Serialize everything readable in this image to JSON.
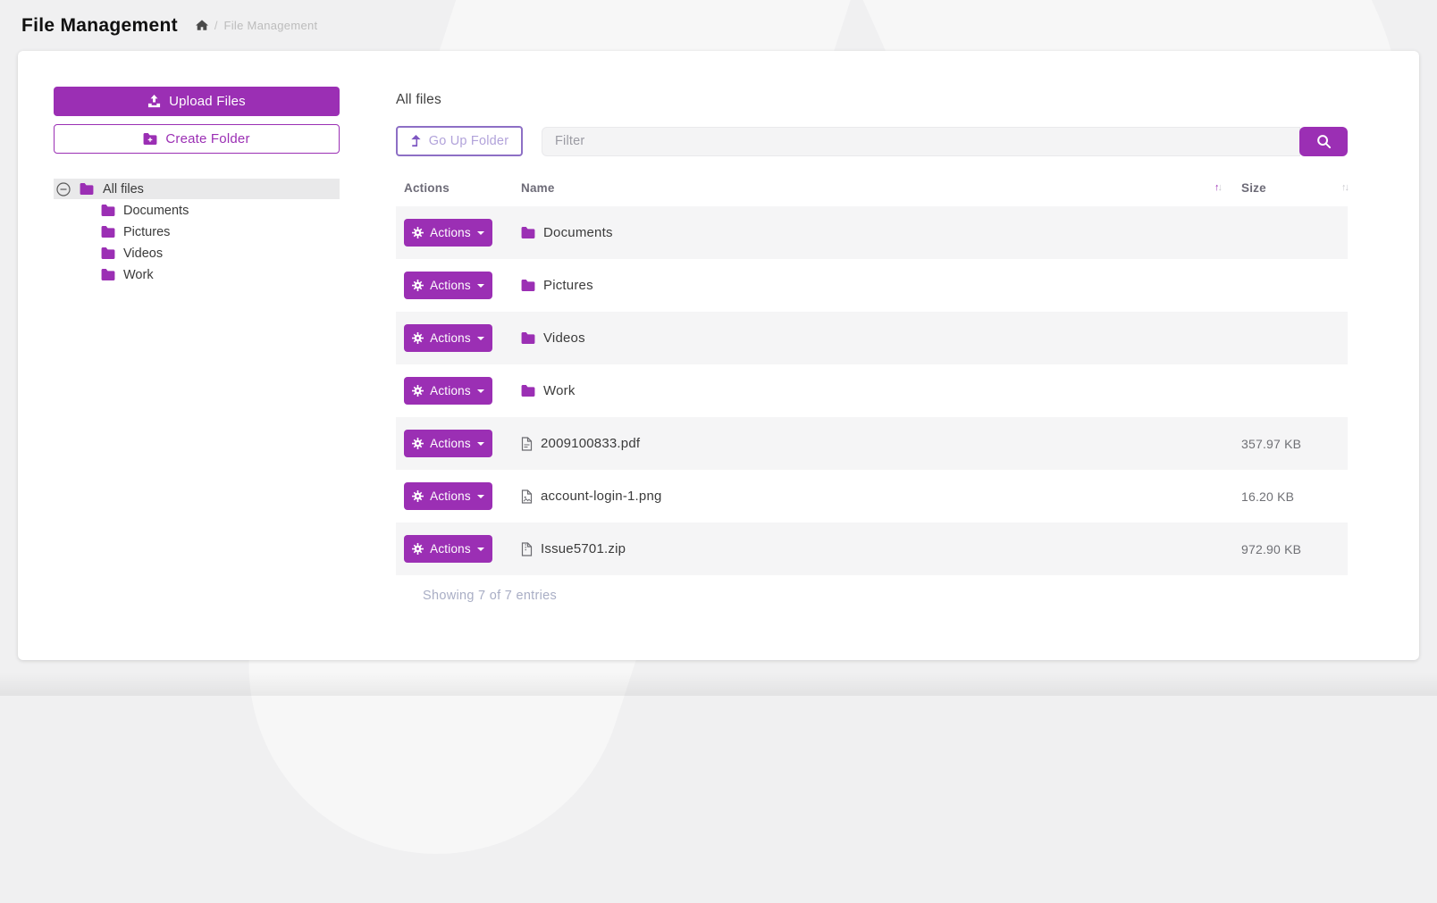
{
  "colors": {
    "accent": "#9B2FB4",
    "accent_dark": "#7E57C2",
    "stripe": "#f5f5f6",
    "tree_selected": "#e9e9ea"
  },
  "header": {
    "title": "File Management",
    "breadcrumb": {
      "separator": "/",
      "current": "File Management"
    }
  },
  "sidebar": {
    "upload_button_label": "Upload Files",
    "create_folder_button_label": "Create Folder",
    "tree": {
      "root": {
        "label": "All files",
        "icon": "folder-icon",
        "toggle_icon": "minus-circle-icon",
        "selected": true
      },
      "children": [
        {
          "label": "Documents",
          "icon": "folder-icon"
        },
        {
          "label": "Pictures",
          "icon": "folder-icon"
        },
        {
          "label": "Videos",
          "icon": "folder-icon"
        },
        {
          "label": "Work",
          "icon": "folder-icon"
        }
      ]
    }
  },
  "main": {
    "heading": "All files",
    "go_up_button_label": "Go Up Folder",
    "filter_placeholder": "Filter",
    "table": {
      "columns": {
        "actions": "Actions",
        "name": "Name",
        "size": "Size"
      },
      "name_sort_active": true,
      "actions_button_label": "Actions",
      "rows": [
        {
          "icon": "folder-icon",
          "name": "Documents",
          "size": ""
        },
        {
          "icon": "folder-icon",
          "name": "Pictures",
          "size": ""
        },
        {
          "icon": "folder-icon",
          "name": "Videos",
          "size": ""
        },
        {
          "icon": "folder-icon",
          "name": "Work",
          "size": ""
        },
        {
          "icon": "file-pdf-icon",
          "name": "2009100833.pdf",
          "size": "357.97 KB"
        },
        {
          "icon": "file-image-icon",
          "name": "account-login-1.png",
          "size": "16.20 KB"
        },
        {
          "icon": "file-zip-icon",
          "name": "Issue5701.zip",
          "size": "972.90 KB"
        }
      ],
      "footer": "Showing 7 of 7 entries"
    }
  }
}
